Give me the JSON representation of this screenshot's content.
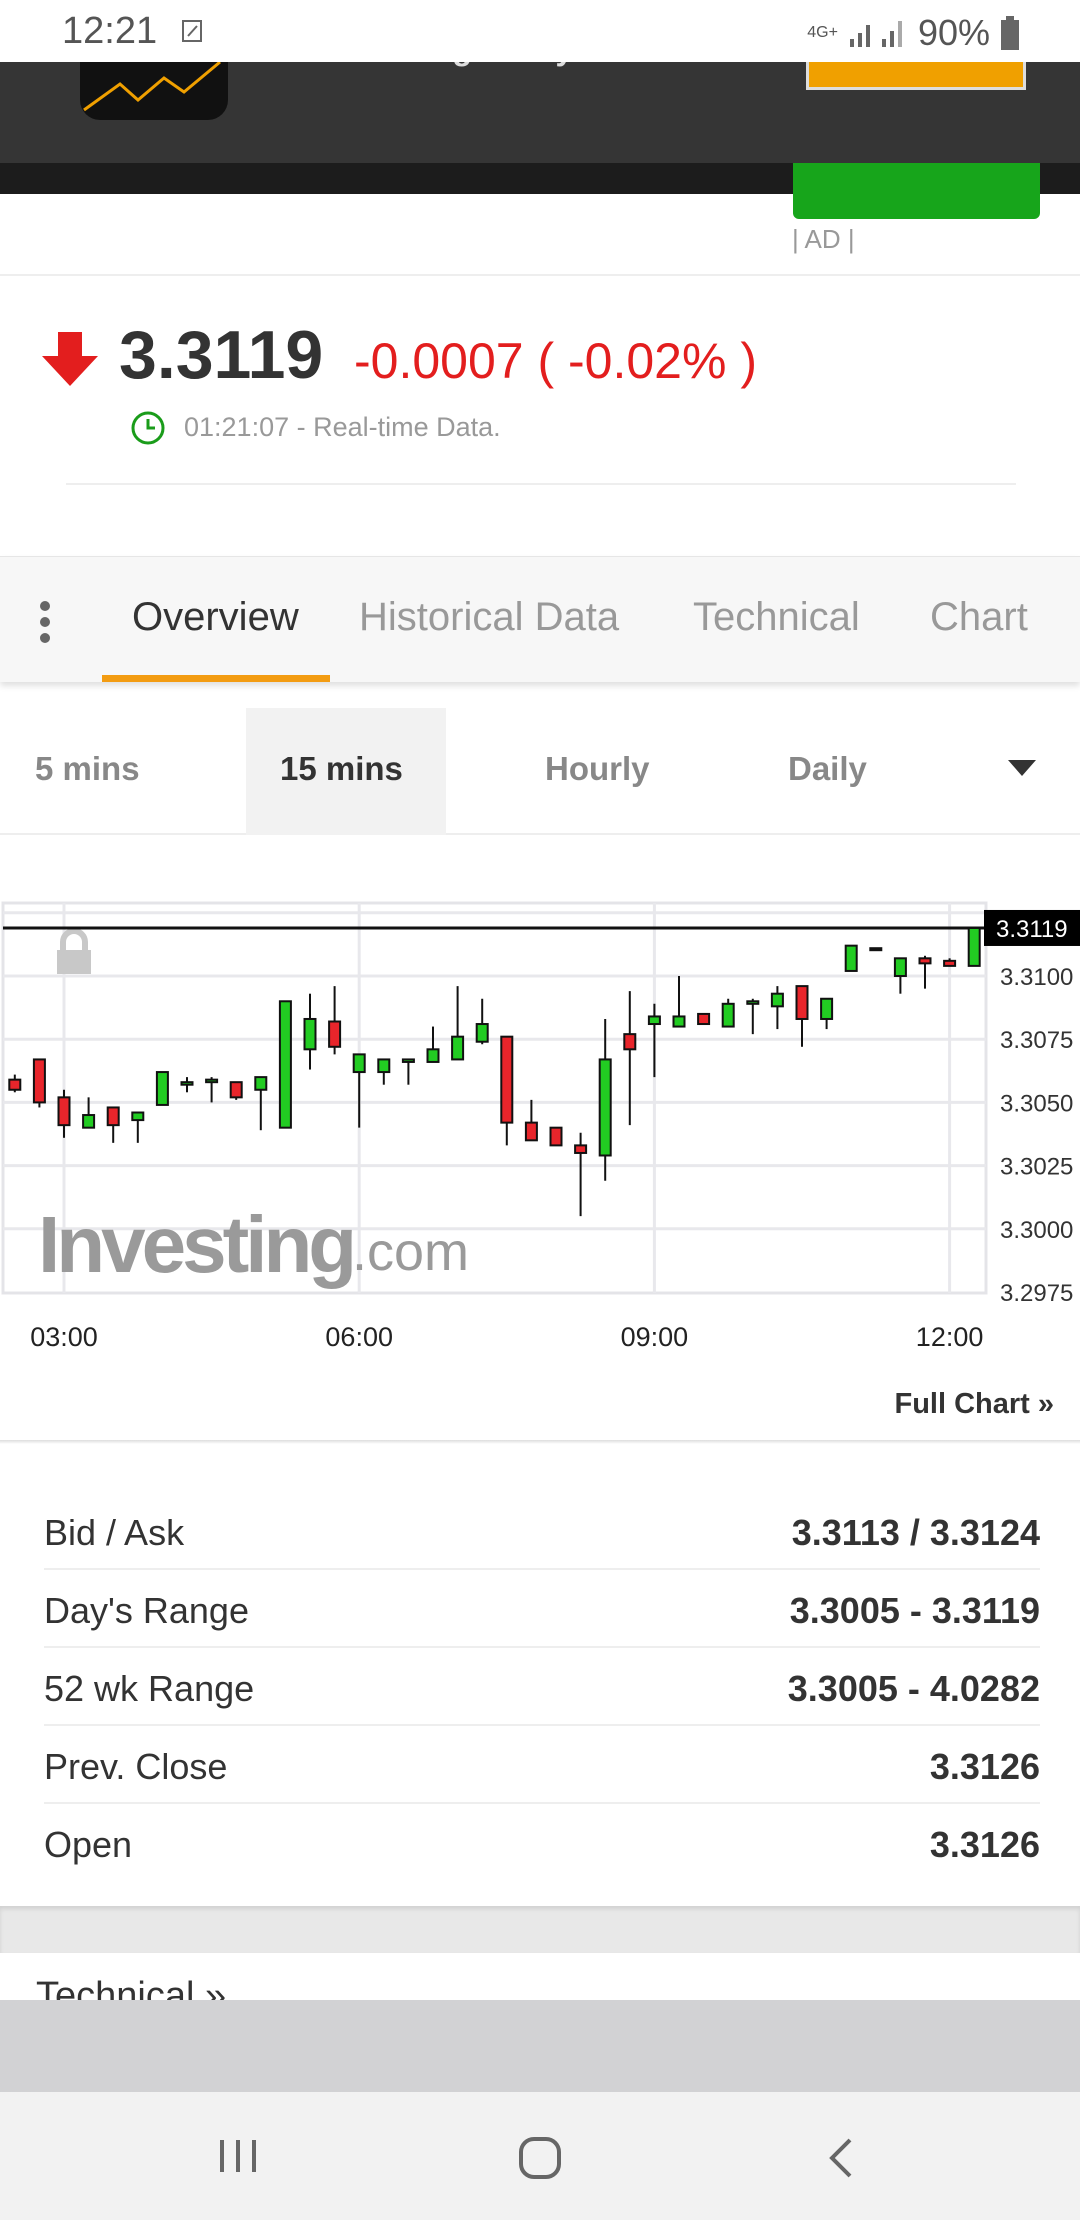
{
  "status_bar": {
    "time": "12:21",
    "network": "4G+",
    "battery": "90%"
  },
  "ad": {
    "text": "Free - In Google Play",
    "label": "| AD |"
  },
  "quote": {
    "price": "3.3119",
    "change": "-0.0007 ( -0.02% )",
    "direction": "down",
    "timestamp": "01:21:07 - Real-time Data.",
    "colors": {
      "down": "#e31e1e",
      "clock": "#1a9c1a"
    }
  },
  "tabs": [
    {
      "label": "Overview",
      "active": true
    },
    {
      "label": "Historical Data",
      "active": false
    },
    {
      "label": "Technical",
      "active": false
    },
    {
      "label": "Chart",
      "active": false
    }
  ],
  "timeframes": [
    {
      "label": "5 mins",
      "active": false
    },
    {
      "label": "15 mins",
      "active": true
    },
    {
      "label": "Hourly",
      "active": false
    },
    {
      "label": "Daily",
      "active": false
    }
  ],
  "chart_data": {
    "type": "candlestick",
    "interval": "15 mins",
    "ylim": [
      3.2975,
      3.3125
    ],
    "y_ticks": [
      "3.3100",
      "3.3075",
      "3.3050",
      "3.3025",
      "3.3000",
      "3.2975"
    ],
    "x_ticks": [
      "03:00",
      "06:00",
      "09:00",
      "12:00"
    ],
    "last_price_label": "3.3119",
    "watermark": "Investing.com",
    "grid": true,
    "colors": {
      "up": "#22cc22",
      "down": "#e8252b"
    },
    "candles": [
      {
        "t": "02:30",
        "o": 3.3059,
        "h": 3.3061,
        "l": 3.3054,
        "c": 3.3055
      },
      {
        "t": "02:45",
        "o": 3.3067,
        "h": 3.3067,
        "l": 3.3048,
        "c": 3.305
      },
      {
        "t": "03:00",
        "o": 3.3052,
        "h": 3.3055,
        "l": 3.3036,
        "c": 3.3041
      },
      {
        "t": "03:15",
        "o": 3.304,
        "h": 3.3052,
        "l": 3.304,
        "c": 3.3045
      },
      {
        "t": "03:30",
        "o": 3.3048,
        "h": 3.3048,
        "l": 3.3034,
        "c": 3.3041
      },
      {
        "t": "03:45",
        "o": 3.3043,
        "h": 3.3046,
        "l": 3.3034,
        "c": 3.3046
      },
      {
        "t": "04:00",
        "o": 3.3049,
        "h": 3.3062,
        "l": 3.3049,
        "c": 3.3062
      },
      {
        "t": "04:15",
        "o": 3.3057,
        "h": 3.306,
        "l": 3.3054,
        "c": 3.3058
      },
      {
        "t": "04:30",
        "o": 3.3058,
        "h": 3.306,
        "l": 3.305,
        "c": 3.3059
      },
      {
        "t": "04:45",
        "o": 3.3058,
        "h": 3.3058,
        "l": 3.3051,
        "c": 3.3052
      },
      {
        "t": "05:00",
        "o": 3.3055,
        "h": 3.306,
        "l": 3.3039,
        "c": 3.306
      },
      {
        "t": "05:15",
        "o": 3.304,
        "h": 3.309,
        "l": 3.304,
        "c": 3.309
      },
      {
        "t": "05:30",
        "o": 3.3071,
        "h": 3.3093,
        "l": 3.3063,
        "c": 3.3083
      },
      {
        "t": "05:45",
        "o": 3.3082,
        "h": 3.3096,
        "l": 3.3069,
        "c": 3.3072
      },
      {
        "t": "06:00",
        "o": 3.3062,
        "h": 3.3069,
        "l": 3.304,
        "c": 3.3069
      },
      {
        "t": "06:15",
        "o": 3.3062,
        "h": 3.3067,
        "l": 3.3057,
        "c": 3.3067
      },
      {
        "t": "06:30",
        "o": 3.3066,
        "h": 3.3067,
        "l": 3.3057,
        "c": 3.3067
      },
      {
        "t": "06:45",
        "o": 3.3066,
        "h": 3.308,
        "l": 3.3066,
        "c": 3.3071
      },
      {
        "t": "07:00",
        "o": 3.3067,
        "h": 3.3096,
        "l": 3.3067,
        "c": 3.3076
      },
      {
        "t": "07:15",
        "o": 3.3074,
        "h": 3.3091,
        "l": 3.3073,
        "c": 3.3081
      },
      {
        "t": "07:30",
        "o": 3.3076,
        "h": 3.3076,
        "l": 3.3033,
        "c": 3.3042
      },
      {
        "t": "07:45",
        "o": 3.3042,
        "h": 3.3051,
        "l": 3.3035,
        "c": 3.3035
      },
      {
        "t": "08:00",
        "o": 3.304,
        "h": 3.304,
        "l": 3.3033,
        "c": 3.3033
      },
      {
        "t": "08:15",
        "o": 3.3033,
        "h": 3.3038,
        "l": 3.3005,
        "c": 3.303
      },
      {
        "t": "08:30",
        "o": 3.3029,
        "h": 3.3083,
        "l": 3.3019,
        "c": 3.3067
      },
      {
        "t": "08:45",
        "o": 3.3077,
        "h": 3.3094,
        "l": 3.3041,
        "c": 3.3071
      },
      {
        "t": "09:00",
        "o": 3.3081,
        "h": 3.3089,
        "l": 3.306,
        "c": 3.3084
      },
      {
        "t": "09:15",
        "o": 3.308,
        "h": 3.31,
        "l": 3.308,
        "c": 3.3084
      },
      {
        "t": "09:30",
        "o": 3.3085,
        "h": 3.3085,
        "l": 3.3081,
        "c": 3.3081
      },
      {
        "t": "09:45",
        "o": 3.308,
        "h": 3.3091,
        "l": 3.308,
        "c": 3.3089
      },
      {
        "t": "10:00",
        "o": 3.3089,
        "h": 3.3091,
        "l": 3.3077,
        "c": 3.309
      },
      {
        "t": "10:15",
        "o": 3.3088,
        "h": 3.3096,
        "l": 3.3079,
        "c": 3.3093
      },
      {
        "t": "10:30",
        "o": 3.3096,
        "h": 3.3096,
        "l": 3.3072,
        "c": 3.3083
      },
      {
        "t": "10:45",
        "o": 3.3083,
        "h": 3.3091,
        "l": 3.3079,
        "c": 3.3091
      },
      {
        "t": "11:00",
        "o": 3.3102,
        "h": 3.3112,
        "l": 3.3102,
        "c": 3.3112
      },
      {
        "t": "11:15",
        "o": 3.3111,
        "h": 3.3111,
        "l": 3.311,
        "c": 3.3111
      },
      {
        "t": "11:30",
        "o": 3.31,
        "h": 3.3107,
        "l": 3.3093,
        "c": 3.3107
      },
      {
        "t": "11:45",
        "o": 3.3107,
        "h": 3.3108,
        "l": 3.3095,
        "c": 3.3105
      },
      {
        "t": "12:00",
        "o": 3.3106,
        "h": 3.3107,
        "l": 3.3104,
        "c": 3.3104
      },
      {
        "t": "12:15",
        "o": 3.3104,
        "h": 3.3119,
        "l": 3.3104,
        "c": 3.3119
      }
    ]
  },
  "full_chart_link": "Full Chart »",
  "stats": [
    {
      "label": "Bid / Ask",
      "value": "3.3113 / 3.3124"
    },
    {
      "label": "Day's Range",
      "value": "3.3005 - 3.3119"
    },
    {
      "label": "52 wk Range",
      "value": "3.3005 - 4.0282"
    },
    {
      "label": "Prev. Close",
      "value": "3.3126"
    },
    {
      "label": "Open",
      "value": "3.3126"
    }
  ],
  "next_section": "Technical »",
  "nav": [
    "recent-apps-icon",
    "home-icon",
    "back-icon"
  ]
}
